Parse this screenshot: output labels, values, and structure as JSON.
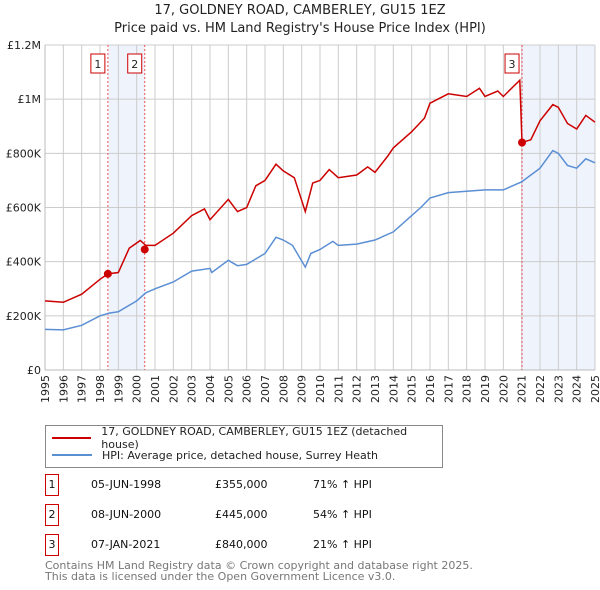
{
  "title": "17, GOLDNEY ROAD, CAMBERLEY, GU15 1EZ",
  "subtitle": "Price paid vs. HM Land Registry's House Price Index (HPI)",
  "chart_data": {
    "type": "line",
    "title": "17, GOLDNEY ROAD, CAMBERLEY, GU15 1EZ",
    "xlim": [
      1995,
      2025
    ],
    "ylim": [
      0,
      1200000
    ],
    "yticks": [
      0,
      200000,
      400000,
      600000,
      800000,
      1000000,
      1200000
    ],
    "ytick_labels": [
      "£0",
      "£200K",
      "£400K",
      "£600K",
      "£800K",
      "£1M",
      "£1.2M"
    ],
    "xticks": [
      1995,
      1996,
      1997,
      1998,
      1999,
      2000,
      2001,
      2002,
      2003,
      2004,
      2005,
      2006,
      2007,
      2008,
      2009,
      2010,
      2011,
      2012,
      2013,
      2014,
      2015,
      2016,
      2017,
      2018,
      2019,
      2020,
      2021,
      2022,
      2023,
      2024,
      2025
    ],
    "grid": true,
    "legend_placement": "below",
    "series": [
      {
        "name": "17, GOLDNEY ROAD, CAMBERLEY, GU15 1EZ (detached house)",
        "color": "#cc0000",
        "x": [
          1995,
          1996,
          1997,
          1998,
          1998.43,
          1999,
          1999.6,
          2000.2,
          2000.5,
          2001,
          2002,
          2003,
          2003.7,
          2004,
          2005,
          2005.5,
          2006,
          2006.5,
          2007,
          2007.6,
          2008,
          2008.6,
          2009.2,
          2009.6,
          2010,
          2010.5,
          2011,
          2012,
          2012.6,
          2013,
          2013.7,
          2014,
          2015,
          2015.7,
          2016,
          2017,
          2018,
          2018.7,
          2019,
          2019.7,
          2020,
          2020.9,
          2021.02,
          2021.5,
          2022,
          2022.7,
          2023,
          2023.5,
          2024,
          2024.5,
          2025
        ],
        "y": [
          255000,
          250000,
          280000,
          335000,
          355000,
          360000,
          450000,
          478000,
          460000,
          460000,
          505000,
          570000,
          595000,
          555000,
          630000,
          585000,
          600000,
          680000,
          700000,
          760000,
          735000,
          710000,
          585000,
          690000,
          700000,
          740000,
          710000,
          720000,
          750000,
          730000,
          790000,
          820000,
          880000,
          930000,
          985000,
          1020000,
          1010000,
          1040000,
          1010000,
          1030000,
          1010000,
          1070000,
          840000,
          850000,
          920000,
          980000,
          970000,
          910000,
          890000,
          940000,
          915000
        ]
      },
      {
        "name": "HPI: Average price, detached house, Surrey Heath",
        "color": "#5b8fd4",
        "x": [
          1995,
          1996,
          1997,
          1998,
          1998.5,
          1999,
          2000,
          2000.5,
          2001,
          2002,
          2003,
          2004,
          2004.1,
          2005,
          2005.5,
          2006,
          2007,
          2007.6,
          2008,
          2008.5,
          2009.2,
          2009.5,
          2010,
          2010.7,
          2011,
          2012,
          2013,
          2014,
          2015,
          2015.5,
          2016,
          2017,
          2018,
          2019,
          2020,
          2021,
          2022,
          2022.7,
          2023,
          2023.5,
          2024,
          2024.5,
          2025
        ],
        "y": [
          150000,
          148000,
          165000,
          200000,
          210000,
          215000,
          255000,
          285000,
          300000,
          325000,
          365000,
          375000,
          360000,
          405000,
          385000,
          390000,
          430000,
          490000,
          480000,
          460000,
          380000,
          430000,
          445000,
          475000,
          460000,
          465000,
          480000,
          510000,
          570000,
          600000,
          635000,
          655000,
          660000,
          665000,
          665000,
          695000,
          745000,
          810000,
          800000,
          755000,
          745000,
          780000,
          765000
        ]
      }
    ],
    "shaded_ranges": [
      [
        1998.43,
        2000.44
      ],
      [
        2021.02,
        2025
      ]
    ],
    "sales": [
      {
        "label": "1",
        "x": 1998.43,
        "y": 355000
      },
      {
        "label": "2",
        "x": 2000.44,
        "y": 445000
      },
      {
        "label": "3",
        "x": 2021.02,
        "y": 840000
      }
    ]
  },
  "legend": [
    {
      "label": "17, GOLDNEY ROAD, CAMBERLEY, GU15 1EZ (detached house)",
      "color": "#cc0000"
    },
    {
      "label": "HPI: Average price, detached house, Surrey Heath",
      "color": "#5b8fd4"
    }
  ],
  "sales_table": [
    {
      "num": "1",
      "date": "05-JUN-1998",
      "price": "£355,000",
      "hpi": "71% ↑ HPI"
    },
    {
      "num": "2",
      "date": "08-JUN-2000",
      "price": "£445,000",
      "hpi": "54% ↑ HPI"
    },
    {
      "num": "3",
      "date": "07-JAN-2021",
      "price": "£840,000",
      "hpi": "21% ↑ HPI"
    }
  ],
  "footer": [
    "Contains HM Land Registry data © Crown copyright and database right 2025.",
    "This data is licensed under the Open Government Licence v3.0."
  ]
}
